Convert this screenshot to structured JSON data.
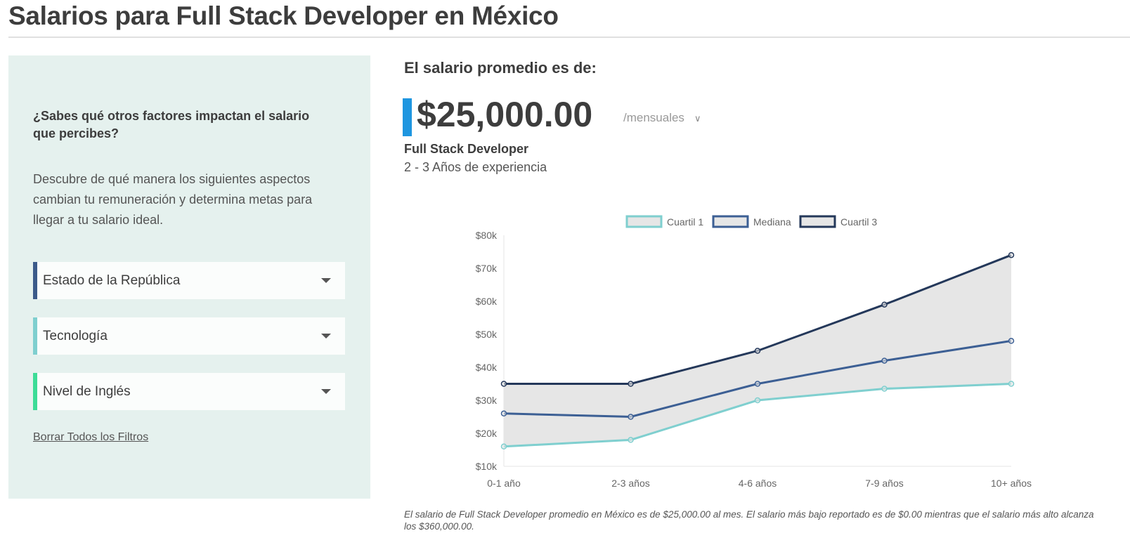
{
  "header": {
    "title": "Salarios para Full Stack Developer en México"
  },
  "sidebar": {
    "question": "¿Sabes qué otros factores impactan el salario que percibes?",
    "description": "Descubre de qué manera los siguientes aspectos cambian tu remuneración y determina metas para llegar a tu salario ideal.",
    "filters": [
      {
        "label": "Estado de la República",
        "color": "#3c5a8a"
      },
      {
        "label": "Tecnología",
        "color": "#7fcfcf"
      },
      {
        "label": "Nivel de Inglés",
        "color": "#3ddc97"
      }
    ],
    "clear_label": "Borrar Todos los Filtros"
  },
  "summary": {
    "heading": "El salario promedio es de:",
    "amount": "$25,000.00",
    "period": "/mensuales",
    "role": "Full Stack Developer",
    "experience": "2 - 3 Años de experiencia",
    "accent": "#1e96e0"
  },
  "footnote": "El salario de Full Stack Developer promedio en México es de $25,000.00 al mes. El salario más bajo reportado es de $0.00 mientras que el salario más alto alcanza los $360,000.00.",
  "chart_data": {
    "type": "line",
    "categories": [
      "0-1 año",
      "2-3 años",
      "4-6 años",
      "7-9 años",
      "10+ años"
    ],
    "series": [
      {
        "name": "Cuartil 1",
        "values": [
          16000,
          18000,
          30000,
          33500,
          35000
        ],
        "color": "#7fcfcf"
      },
      {
        "name": "Mediana",
        "values": [
          26000,
          25000,
          35000,
          42000,
          48000
        ],
        "color": "#3c5f94"
      },
      {
        "name": "Cuartil 3",
        "values": [
          35000,
          35000,
          45000,
          59000,
          74000
        ],
        "color": "#24385a"
      }
    ],
    "yticks": [
      "$10k",
      "$20k",
      "$30k",
      "$40k",
      "$50k",
      "$60k",
      "$70k",
      "$80k"
    ],
    "ylim": [
      10000,
      80000
    ],
    "fill_between": "Cuartil 1 – Cuartil 3",
    "fill_color": "#e6e6e6",
    "legend": "top",
    "grid": false
  }
}
